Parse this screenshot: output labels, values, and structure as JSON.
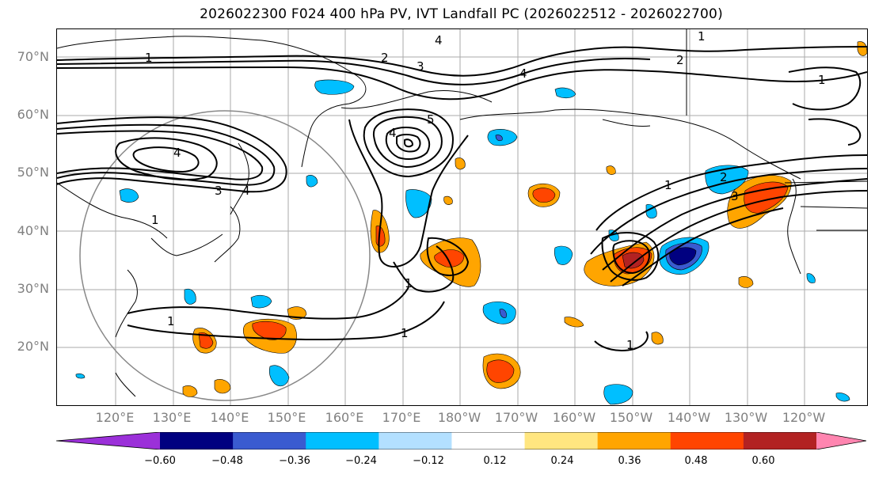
{
  "title": "2026022300 F024 400 hPa PV, IVT Landfall PC (2026022512 - 2026022700)",
  "lat_labels": [
    "70°N",
    "60°N",
    "50°N",
    "40°N",
    "30°N",
    "20°N"
  ],
  "lon_labels": [
    "120°E",
    "130°E",
    "140°E",
    "150°E",
    "160°E",
    "170°E",
    "180°W",
    "170°W",
    "160°W",
    "150°W",
    "140°W",
    "130°W",
    "120°W"
  ],
  "contour_labels": [
    "1",
    "2",
    "3",
    "4",
    "5"
  ],
  "colorbar": {
    "ticks": [
      "−0.60",
      "−0.48",
      "−0.36",
      "−0.24",
      "−0.12",
      "0.12",
      "0.24",
      "0.36",
      "0.48",
      "0.60"
    ],
    "colors": [
      "#9b30d9",
      "#000080",
      "#3a5bd0",
      "#00bfff",
      "#b3e0ff",
      "#ffffff",
      "#ffe680",
      "#ffa500",
      "#ff4500",
      "#b22222",
      "#ff85b0"
    ]
  }
}
